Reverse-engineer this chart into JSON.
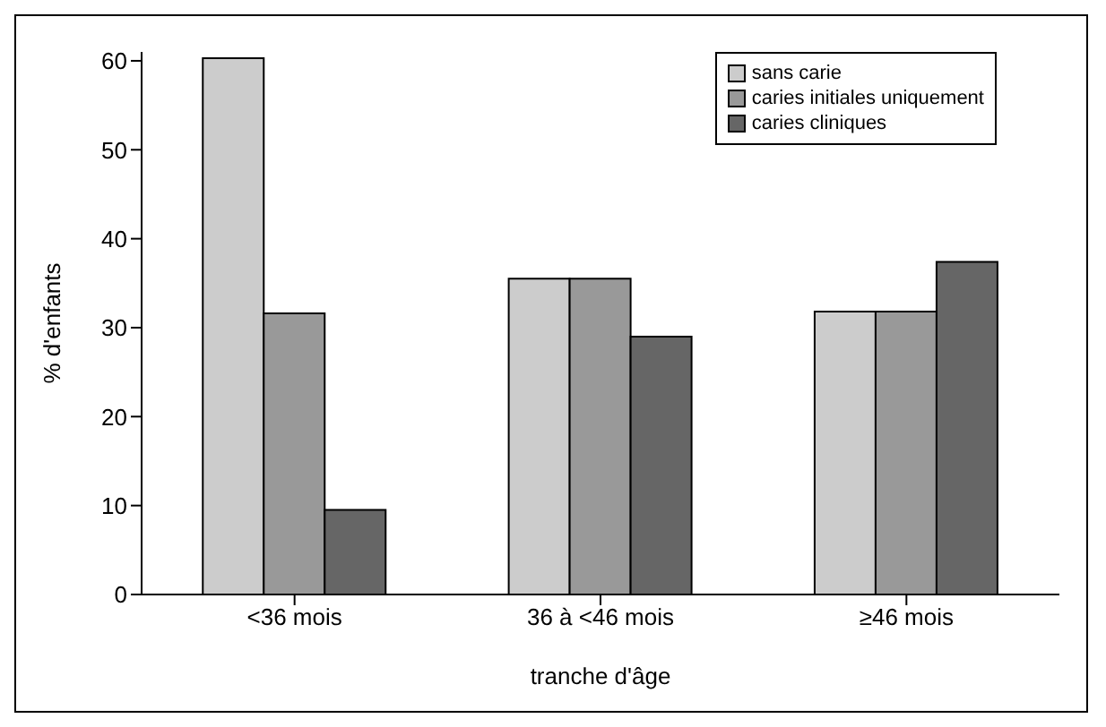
{
  "chart_data": {
    "type": "bar",
    "xlabel": "tranche d'âge",
    "ylabel": "% d'enfants",
    "categories": [
      "<36 mois",
      "36 à <46 mois",
      "≥46 mois"
    ],
    "series": [
      {
        "name": "sans carie",
        "color": "#cccccc",
        "values": [
          60.3,
          35.5,
          31.8
        ]
      },
      {
        "name": "caries initiales uniquement",
        "color": "#999999",
        "values": [
          31.6,
          35.5,
          31.8
        ]
      },
      {
        "name": "caries cliniques",
        "color": "#666666",
        "values": [
          9.5,
          29,
          37.4
        ]
      }
    ],
    "ylim": [
      0,
      61
    ],
    "yticks": [
      0,
      10,
      20,
      30,
      40,
      50,
      60
    ],
    "grid": false,
    "legend": "top right"
  }
}
